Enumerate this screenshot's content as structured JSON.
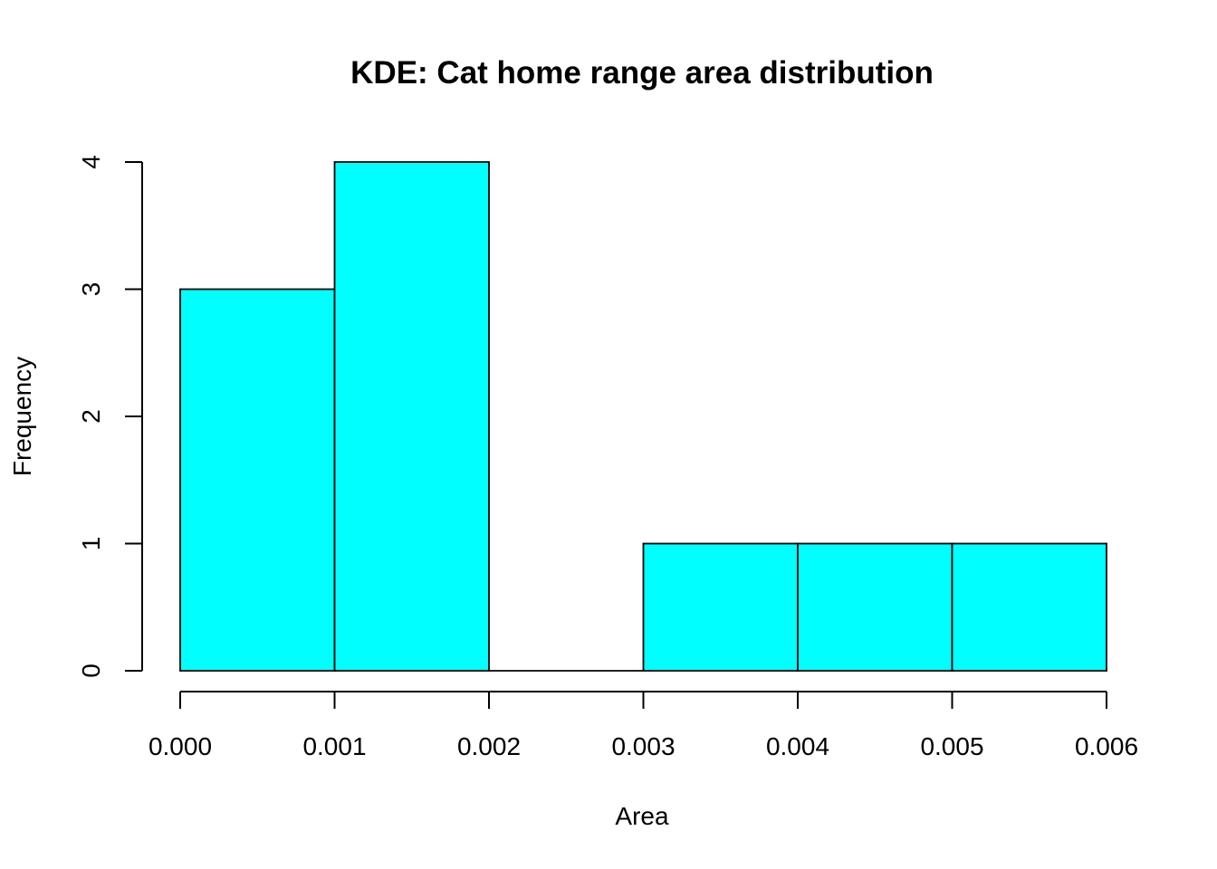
{
  "chart_data": {
    "type": "bar",
    "title": "KDE: Cat home range area distribution",
    "xlabel": "Area",
    "ylabel": "Frequency",
    "bins": [
      {
        "start": 0.0,
        "end": 0.001,
        "count": 3
      },
      {
        "start": 0.001,
        "end": 0.002,
        "count": 4
      },
      {
        "start": 0.002,
        "end": 0.003,
        "count": 0
      },
      {
        "start": 0.003,
        "end": 0.004,
        "count": 1
      },
      {
        "start": 0.004,
        "end": 0.005,
        "count": 1
      },
      {
        "start": 0.005,
        "end": 0.006,
        "count": 1
      }
    ],
    "xlim": [
      0.0,
      0.006
    ],
    "ylim": [
      0,
      4
    ],
    "xticks": [
      "0.000",
      "0.001",
      "0.002",
      "0.003",
      "0.004",
      "0.005",
      "0.006"
    ],
    "yticks": [
      "0",
      "1",
      "2",
      "3",
      "4"
    ],
    "bar_color": "#00ffff",
    "edge_color": "#000000",
    "grid": false,
    "legend": "none"
  }
}
